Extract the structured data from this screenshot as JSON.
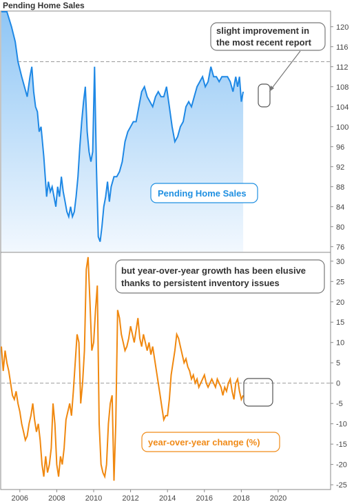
{
  "title": "Pending Home Sales",
  "colors": {
    "top_series": "#1e88e5",
    "bottom_series": "#f0880f",
    "top_fill_light": "#e8f3fd",
    "top_fill_dark": "#90c7f5"
  },
  "annotations": {
    "top_note_line1": "slight improvement in",
    "top_note_line2": "the most recent report",
    "bottom_note_line1": "but year-over-year growth has been elusive",
    "bottom_note_line2": "thanks to persistent inventory issues",
    "top_series_label": "Pending Home Sales",
    "bottom_series_label": "year-over-year change (%)"
  },
  "chart_data": [
    {
      "type": "area",
      "title": "Pending Home Sales",
      "x_unit": "year",
      "xlim": [
        2005.0,
        2022.8
      ],
      "ylim": [
        75,
        123
      ],
      "yticks": [
        76,
        80,
        84,
        88,
        92,
        96,
        100,
        104,
        108,
        112,
        116,
        120
      ],
      "reference_line": 113,
      "series": [
        {
          "name": "Pending Home Sales",
          "x": [
            2005.0,
            2005.3,
            2005.55,
            2005.75,
            2005.9,
            2006.1,
            2006.25,
            2006.4,
            2006.55,
            2006.65,
            2006.75,
            2006.85,
            2006.95,
            2007.05,
            2007.15,
            2007.3,
            2007.45,
            2007.55,
            2007.65,
            2007.75,
            2007.85,
            2007.95,
            2008.05,
            2008.15,
            2008.25,
            2008.35,
            2008.45,
            2008.55,
            2008.65,
            2008.75,
            2008.85,
            2008.95,
            2009.05,
            2009.15,
            2009.25,
            2009.35,
            2009.45,
            2009.55,
            2009.65,
            2009.75,
            2009.85,
            2009.95,
            2010.05,
            2010.15,
            2010.25,
            2010.35,
            2010.45,
            2010.55,
            2010.65,
            2010.75,
            2010.85,
            2010.95,
            2011.1,
            2011.25,
            2011.4,
            2011.55,
            2011.7,
            2011.85,
            2012.0,
            2012.15,
            2012.3,
            2012.45,
            2012.6,
            2012.75,
            2012.9,
            2013.05,
            2013.2,
            2013.35,
            2013.5,
            2013.65,
            2013.8,
            2013.95,
            2014.1,
            2014.25,
            2014.4,
            2014.55,
            2014.7,
            2014.85,
            2015.0,
            2015.15,
            2015.3,
            2015.45,
            2015.6,
            2015.75,
            2015.9,
            2016.05,
            2016.2,
            2016.35,
            2016.5,
            2016.65,
            2016.8,
            2016.95,
            2017.1,
            2017.25,
            2017.4,
            2017.55,
            2017.7,
            2017.8,
            2017.9,
            2018.0,
            2018.1
          ],
          "y": [
            123,
            123,
            120,
            117,
            113,
            110,
            108,
            106,
            110,
            112,
            107,
            104,
            103,
            99,
            100,
            94,
            86,
            89,
            87,
            88,
            86,
            84,
            88,
            86,
            90,
            87,
            85,
            83,
            82,
            84,
            82,
            83,
            86,
            90,
            96,
            101,
            105,
            108,
            99,
            95,
            93,
            95,
            112,
            92,
            78,
            77,
            80,
            84,
            86,
            89,
            85,
            88,
            90,
            90,
            91,
            93,
            97,
            99,
            100,
            101,
            101,
            104,
            107,
            108,
            106,
            105,
            104,
            106,
            107,
            106,
            106,
            108,
            104,
            100,
            97,
            98,
            100,
            101,
            104,
            105,
            104,
            106,
            108,
            109,
            110,
            108,
            109,
            112,
            110,
            110,
            109,
            110,
            110,
            110,
            109,
            107,
            110,
            108,
            110,
            105,
            107
          ]
        }
      ]
    },
    {
      "type": "line",
      "title": "year-over-year change (%)",
      "x_unit": "year",
      "xlim": [
        2005.0,
        2022.8
      ],
      "ylim": [
        -26,
        32
      ],
      "xticks": [
        "2006",
        "2008",
        "2010",
        "2012",
        "2014",
        "2016",
        "2018",
        "2020"
      ],
      "yticks": [
        -25,
        -20,
        -15,
        -10,
        -5,
        0,
        5,
        10,
        15,
        20,
        25,
        30
      ],
      "reference_line": 0,
      "series": [
        {
          "name": "year-over-year change (%)",
          "x": [
            2005.0,
            2005.1,
            2005.2,
            2005.3,
            2005.4,
            2005.5,
            2005.6,
            2005.7,
            2005.8,
            2005.9,
            2006.0,
            2006.1,
            2006.2,
            2006.3,
            2006.4,
            2006.5,
            2006.6,
            2006.7,
            2006.8,
            2006.9,
            2007.0,
            2007.1,
            2007.2,
            2007.3,
            2007.4,
            2007.5,
            2007.6,
            2007.7,
            2007.8,
            2007.9,
            2008.0,
            2008.1,
            2008.2,
            2008.3,
            2008.4,
            2008.5,
            2008.6,
            2008.7,
            2008.8,
            2008.9,
            2009.0,
            2009.1,
            2009.2,
            2009.3,
            2009.4,
            2009.5,
            2009.6,
            2009.7,
            2009.8,
            2009.9,
            2010.0,
            2010.1,
            2010.2,
            2010.3,
            2010.4,
            2010.5,
            2010.6,
            2010.7,
            2010.8,
            2010.9,
            2011.0,
            2011.1,
            2011.2,
            2011.3,
            2011.4,
            2011.5,
            2011.6,
            2011.7,
            2011.8,
            2011.9,
            2012.0,
            2012.1,
            2012.2,
            2012.3,
            2012.4,
            2012.5,
            2012.6,
            2012.7,
            2012.8,
            2012.9,
            2013.0,
            2013.1,
            2013.2,
            2013.3,
            2013.4,
            2013.5,
            2013.6,
            2013.7,
            2013.8,
            2013.9,
            2014.0,
            2014.1,
            2014.2,
            2014.3,
            2014.4,
            2014.5,
            2014.6,
            2014.7,
            2014.8,
            2014.9,
            2015.0,
            2015.1,
            2015.2,
            2015.3,
            2015.4,
            2015.5,
            2015.6,
            2015.7,
            2015.8,
            2015.9,
            2016.0,
            2016.1,
            2016.2,
            2016.3,
            2016.4,
            2016.5,
            2016.6,
            2016.7,
            2016.8,
            2016.9,
            2017.0,
            2017.1,
            2017.2,
            2017.3,
            2017.4,
            2017.5,
            2017.6,
            2017.7,
            2017.8,
            2017.9,
            2018.0,
            2018.1
          ],
          "y": [
            9,
            3,
            8,
            5,
            3,
            0,
            -3,
            -4,
            -2,
            -5,
            -7,
            -10,
            -12,
            -14,
            -13,
            -10,
            -8,
            -5,
            -9,
            -12,
            -10,
            -14,
            -20,
            -23,
            -18,
            -22,
            -20,
            -16,
            -5,
            -10,
            -20,
            -23,
            -18,
            -20,
            -16,
            -9,
            -7,
            -5,
            -8,
            -2,
            5,
            12,
            10,
            -5,
            0,
            8,
            28,
            31,
            20,
            8,
            10,
            18,
            24,
            -10,
            -20,
            -22,
            -23,
            -20,
            -10,
            -5,
            -3,
            -24,
            -10,
            18,
            16,
            12,
            10,
            8,
            9,
            11,
            14,
            12,
            10,
            13,
            16,
            11,
            9,
            12,
            10,
            8,
            10,
            7,
            9,
            6,
            3,
            0,
            -3,
            -6,
            -9,
            -8,
            -8,
            -4,
            2,
            5,
            8,
            12,
            11,
            9,
            7,
            5,
            6,
            4,
            3,
            1,
            2,
            0,
            1,
            -1,
            0,
            1,
            2,
            0,
            -1,
            0,
            1,
            0,
            -1,
            1,
            0,
            -1,
            -3,
            -1,
            -2,
            0,
            1,
            -2,
            -4,
            0,
            1,
            -2,
            -4,
            -3
          ]
        }
      ]
    }
  ]
}
